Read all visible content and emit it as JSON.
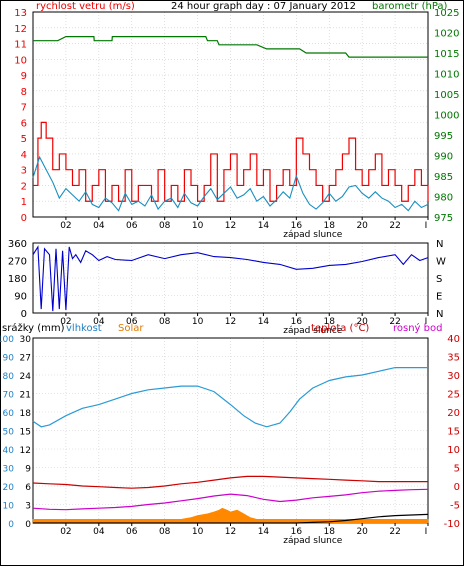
{
  "chart_data": [
    {
      "type": "line",
      "title": "24 hour graph day : 07 January 2012",
      "left_axis_label": "rychlost vetru (m/s)",
      "right_axis_label": "barometr (hPa)",
      "left_ticks": [
        "13",
        "12",
        "11",
        "10",
        "9",
        "8",
        "7",
        "6",
        "5",
        "4",
        "3",
        "2",
        "1",
        "0"
      ],
      "right_ticks": [
        "1025",
        "1020",
        "1015",
        "1010",
        "1005",
        "1000",
        "995",
        "990",
        "985",
        "980",
        "975"
      ],
      "ylim_left": [
        0,
        13
      ],
      "ylim_right": [
        975,
        1025
      ],
      "x_ticks": [
        "02",
        "04",
        "06",
        "08",
        "10",
        "12",
        "14",
        "16",
        "18",
        "20",
        "22",
        "I"
      ],
      "sunset_label": "západ slunce",
      "colors": {
        "gust": "#ee0000",
        "wind": "#1a8fbf",
        "pressure": "#007700"
      },
      "series": [
        {
          "key": "pressure",
          "x": [
            0,
            1.5,
            2.0,
            3.7,
            3.72,
            4.8,
            4.82,
            5.2,
            5.22,
            10.5,
            10.6,
            11.2,
            11.3,
            11.6,
            13.6,
            14.2,
            14.5,
            16.2,
            16.6,
            19.0,
            19.2,
            24
          ],
          "values": [
            1018,
            1018,
            1019,
            1019,
            1018,
            1018,
            1019,
            1019,
            1019,
            1019,
            1018,
            1018,
            1017,
            1017,
            1017,
            1016,
            1016,
            1016,
            1015,
            1015,
            1014,
            1014
          ]
        },
        {
          "key": "gust",
          "x": [
            0,
            0.3,
            0.5,
            0.8,
            1.2,
            1.6,
            2.0,
            2.4,
            2.8,
            3.2,
            3.6,
            4.0,
            4.4,
            4.8,
            5.2,
            5.6,
            6.0,
            6.4,
            6.8,
            7.2,
            7.6,
            8.0,
            8.4,
            8.8,
            9.2,
            9.6,
            10.0,
            10.4,
            10.8,
            11.2,
            11.6,
            12.0,
            12.4,
            12.8,
            13.2,
            13.6,
            14.0,
            14.4,
            14.8,
            15.2,
            15.6,
            16.0,
            16.4,
            16.8,
            17.2,
            17.6,
            18.0,
            18.4,
            18.8,
            19.2,
            19.6,
            20.0,
            20.4,
            20.8,
            21.2,
            21.6,
            22.0,
            22.4,
            22.8,
            23.2,
            23.6,
            24
          ],
          "values": [
            2,
            5,
            6,
            5,
            3,
            4,
            3,
            2,
            3,
            1,
            2,
            3,
            1,
            2,
            1,
            3,
            1,
            2,
            2,
            1,
            3,
            1,
            2,
            1,
            3,
            2,
            1,
            2,
            4,
            1,
            3,
            4,
            2,
            3,
            4,
            2,
            3,
            1,
            2,
            3,
            2,
            5,
            4,
            3,
            2,
            1,
            2,
            3,
            4,
            5,
            3,
            2,
            3,
            4,
            2,
            3,
            2,
            1,
            2,
            3,
            2,
            1
          ]
        },
        {
          "key": "wind",
          "x": [
            0,
            0.4,
            0.8,
            1.2,
            1.6,
            2.0,
            2.4,
            2.8,
            3.2,
            3.6,
            4.0,
            4.4,
            4.8,
            5.2,
            5.6,
            6.0,
            6.4,
            6.8,
            7.2,
            7.6,
            8.0,
            8.4,
            8.8,
            9.2,
            9.6,
            10.0,
            10.4,
            10.8,
            11.2,
            11.6,
            12.0,
            12.4,
            12.8,
            13.2,
            13.6,
            14.0,
            14.4,
            14.8,
            15.2,
            15.6,
            16.0,
            16.4,
            16.8,
            17.2,
            17.6,
            18.0,
            18.4,
            18.8,
            19.2,
            19.6,
            20.0,
            20.4,
            20.8,
            21.2,
            21.6,
            22.0,
            22.4,
            22.8,
            23.2,
            23.6,
            24
          ],
          "values": [
            2.5,
            3.8,
            3.0,
            2.2,
            1.2,
            1.8,
            1.4,
            1.0,
            1.6,
            0.8,
            0.6,
            1.2,
            0.9,
            0.4,
            1.5,
            0.8,
            1.0,
            0.7,
            1.4,
            0.5,
            1.0,
            1.2,
            0.6,
            1.5,
            0.9,
            0.7,
            1.3,
            1.8,
            1.1,
            1.5,
            1.9,
            1.2,
            1.4,
            1.8,
            1.0,
            1.3,
            0.7,
            1.1,
            1.6,
            1.2,
            2.6,
            1.5,
            0.8,
            0.5,
            0.9,
            1.5,
            1.0,
            1.3,
            1.9,
            2.0,
            1.5,
            1.2,
            1.6,
            1.2,
            1.0,
            0.6,
            0.8,
            0.4,
            1.0,
            0.6,
            0.8
          ]
        }
      ]
    },
    {
      "type": "line",
      "left_ticks": [
        "360",
        "270",
        "180",
        "90",
        "0"
      ],
      "right_ticks": [
        "N",
        "W",
        "S",
        "E",
        "N"
      ],
      "ylim": [
        0,
        360
      ],
      "x_ticks": [
        "02",
        "04",
        "06",
        "08",
        "10",
        "12",
        "14",
        "16",
        "18",
        "20",
        "22",
        "I"
      ],
      "sunset_label": "západ slunce",
      "colors": {
        "direction": "#0000cc"
      },
      "series": [
        {
          "key": "direction",
          "x": [
            0,
            0.3,
            0.5,
            0.7,
            1.0,
            1.2,
            1.4,
            1.6,
            1.8,
            2.0,
            2.2,
            2.4,
            2.6,
            2.9,
            3.2,
            3.6,
            4.0,
            4.5,
            5.0,
            6.0,
            7.0,
            8.0,
            9.0,
            10.0,
            11.0,
            12.0,
            13.0,
            14.0,
            15.0,
            16.0,
            17.0,
            18.0,
            19.0,
            20.0,
            21.0,
            22.0,
            22.5,
            23.0,
            23.5,
            24
          ],
          "values": [
            300,
            340,
            20,
            330,
            300,
            10,
            330,
            20,
            320,
            15,
            340,
            280,
            300,
            260,
            320,
            300,
            270,
            290,
            275,
            270,
            300,
            280,
            300,
            310,
            290,
            285,
            275,
            260,
            250,
            225,
            230,
            245,
            250,
            265,
            285,
            300,
            250,
            300,
            270,
            285
          ]
        }
      ]
    },
    {
      "type": "line",
      "left_label_precip": "srážky (mm)",
      "left_label_humidity": "vlhkost",
      "left_label_solar": "Solar",
      "right_label_temp": "teplota (°C)",
      "right_label_dew": "rosný bod",
      "precip_ticks": [
        "30",
        "27",
        "24",
        "21",
        "18",
        "15",
        "12",
        "9",
        "6",
        "3",
        "0"
      ],
      "humidity_ticks": [
        "100",
        "90",
        "80",
        "70",
        "60",
        "50",
        "40",
        "30",
        "20",
        "10",
        "0"
      ],
      "temp_ticks": [
        "40",
        "35",
        "30",
        "25",
        "20",
        "15",
        "10",
        "5",
        "0",
        "-5",
        "-10"
      ],
      "ylim_humidity": [
        0,
        100
      ],
      "ylim_temp": [
        -10,
        40
      ],
      "x_ticks": [
        "02",
        "04",
        "06",
        "08",
        "10",
        "12",
        "14",
        "16",
        "18",
        "20",
        "22",
        "I"
      ],
      "sunset_label": "západ slunce",
      "colors": {
        "humidity": "#2a9bd6",
        "temperature": "#cc0000",
        "dewpoint": "#cc00cc",
        "solar": "#ff8800",
        "precip": "#000000"
      },
      "series": [
        {
          "key": "humidity",
          "x": [
            0,
            0.5,
            1.0,
            2.0,
            3.0,
            4.0,
            5.0,
            6.0,
            7.0,
            8.0,
            9.0,
            10.0,
            11.0,
            12.0,
            12.8,
            13.5,
            14.2,
            15.0,
            15.6,
            16.2,
            17.0,
            18.0,
            19.0,
            20.0,
            21.0,
            22.0,
            23.0,
            24
          ],
          "values": [
            55,
            52,
            53,
            58,
            62,
            64,
            67,
            70,
            72,
            73,
            74,
            74,
            71,
            64,
            58,
            54,
            52,
            54,
            60,
            67,
            73,
            77,
            79,
            80,
            82,
            84,
            84,
            84
          ]
        },
        {
          "key": "temperature",
          "x": [
            0,
            1,
            2,
            3,
            4,
            5,
            6,
            7,
            8,
            9,
            10,
            11,
            12,
            13,
            14,
            15,
            16,
            17,
            18,
            19,
            20,
            21,
            22,
            23,
            24
          ],
          "values": [
            0.8,
            0.6,
            0.4,
            0.0,
            -0.2,
            -0.4,
            -0.6,
            -0.4,
            0.0,
            0.6,
            1.0,
            1.6,
            2.2,
            2.6,
            2.6,
            2.4,
            2.2,
            2.0,
            1.8,
            1.6,
            1.4,
            1.2,
            1.2,
            1.2,
            1.2
          ]
        },
        {
          "key": "dewpoint",
          "x": [
            0,
            1,
            2,
            3,
            4,
            5,
            6,
            7,
            8,
            9,
            10,
            11,
            12,
            13,
            14,
            15,
            16,
            17,
            18,
            19,
            20,
            21,
            22,
            23,
            24
          ],
          "values": [
            -6.0,
            -6.3,
            -6.4,
            -6.2,
            -6.0,
            -5.8,
            -5.5,
            -5.0,
            -4.6,
            -4.0,
            -3.4,
            -2.7,
            -2.2,
            -2.6,
            -3.6,
            -4.2,
            -3.8,
            -3.2,
            -2.8,
            -2.4,
            -1.8,
            -1.4,
            -1.2,
            -1.0,
            -0.9
          ]
        },
        {
          "key": "solar",
          "x": [
            0,
            6.0,
            7.2,
            8.0,
            9.0,
            9.6,
            10.0,
            10.6,
            11.0,
            11.3,
            11.5,
            11.8,
            12.0,
            12.4,
            12.8,
            13.2,
            13.6,
            14.0,
            15.0,
            24
          ],
          "values": [
            2,
            2,
            2,
            2,
            2,
            3,
            4,
            5,
            6,
            7,
            8,
            7,
            6,
            7,
            5,
            3,
            2,
            2,
            2,
            2
          ]
        },
        {
          "key": "precip",
          "x": [
            0,
            15.0,
            16.0,
            17.0,
            18.0,
            19.0,
            20.0,
            21.0,
            22.0,
            23.0,
            24
          ],
          "values": [
            0,
            0,
            0,
            0.1,
            0.2,
            0.4,
            0.7,
            1.0,
            1.2,
            1.3,
            1.4
          ]
        }
      ]
    }
  ]
}
